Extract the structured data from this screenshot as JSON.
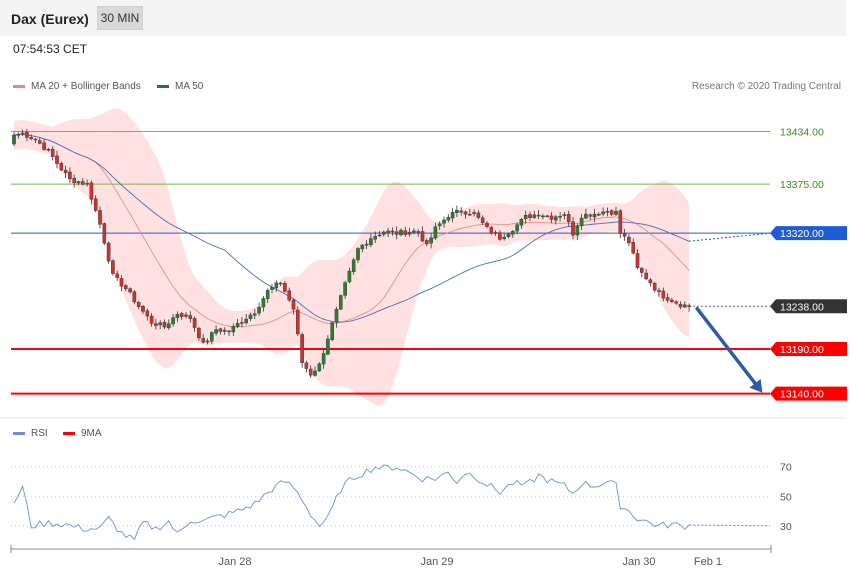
{
  "header": {
    "instrument": "Dax (Eurex)",
    "timeframe": "30 MIN"
  },
  "timestamp": "07:54:53 CET",
  "legend": {
    "ma20_label": "MA 20 + Bollinger Bands",
    "ma50_label": "MA 50",
    "rsi_label": "RSI",
    "rsi_ma_label": "9MA",
    "copyright": "Research © 2020 Trading Central"
  },
  "colors": {
    "up": "#2e7d32",
    "down": "#d32f2f",
    "ma20": "#f08080",
    "bb_fill": "#ffdcdc",
    "ma50": "#4a6fb5",
    "green_level": "#7cb342",
    "blue_level": "#1e5bd6",
    "red_level": "#ff0000",
    "last_price": "#333333",
    "arrow": "#2e5aa8",
    "rsi": "#6b8fe0",
    "rsi_ma": "#ff0000"
  },
  "chart_data": [
    {
      "type": "candlestick",
      "x_axis_labels": [
        "Jan 28",
        "Jan 29",
        "Jan 30",
        "Feb 1"
      ],
      "ylim": [
        13125,
        13475
      ],
      "levels": [
        {
          "value": 13434.0,
          "label": "13434.00",
          "role": "resistance"
        },
        {
          "value": 13375.0,
          "label": "13375.00",
          "role": "resistance"
        },
        {
          "value": 13320.0,
          "label": "13320.00",
          "role": "pivot"
        },
        {
          "value": 13238.0,
          "label": "13238.00",
          "role": "last price"
        },
        {
          "value": 13190.0,
          "label": "13190.00",
          "role": "support"
        },
        {
          "value": 13140.0,
          "label": "13140.00",
          "role": "support"
        }
      ],
      "close_anchors": [
        [
          0,
          13430
        ],
        [
          2,
          13432
        ],
        [
          5,
          13425
        ],
        [
          8,
          13412
        ],
        [
          11,
          13392
        ],
        [
          13,
          13380
        ],
        [
          15,
          13378
        ],
        [
          17,
          13375
        ],
        [
          20,
          13330
        ],
        [
          23,
          13272
        ],
        [
          26,
          13258
        ],
        [
          29,
          13238
        ],
        [
          32,
          13220
        ],
        [
          35,
          13215
        ],
        [
          38,
          13230
        ],
        [
          41,
          13225
        ],
        [
          44,
          13195
        ],
        [
          47,
          13212
        ],
        [
          50,
          13210
        ],
        [
          53,
          13222
        ],
        [
          56,
          13232
        ],
        [
          59,
          13255
        ],
        [
          62,
          13265
        ],
        [
          65,
          13235
        ],
        [
          67,
          13175
        ],
        [
          69,
          13162
        ],
        [
          71,
          13172
        ],
        [
          74,
          13218
        ],
        [
          77,
          13262
        ],
        [
          80,
          13302
        ],
        [
          83,
          13315
        ],
        [
          86,
          13322
        ],
        [
          89,
          13320
        ],
        [
          92,
          13322
        ],
        [
          94,
          13322
        ],
        [
          96,
          13305
        ],
        [
          98,
          13325
        ],
        [
          101,
          13340
        ],
        [
          104,
          13345
        ],
        [
          107,
          13342
        ],
        [
          110,
          13325
        ],
        [
          113,
          13315
        ],
        [
          116,
          13325
        ],
        [
          119,
          13338
        ],
        [
          122,
          13342
        ],
        [
          125,
          13338
        ],
        [
          128,
          13342
        ],
        [
          130,
          13320
        ],
        [
          132,
          13340
        ],
        [
          135,
          13342
        ],
        [
          138,
          13345
        ],
        [
          140,
          13343
        ],
        [
          141,
          13320
        ],
        [
          143,
          13310
        ],
        [
          145,
          13280
        ],
        [
          148,
          13265
        ],
        [
          150,
          13252
        ],
        [
          153,
          13245
        ],
        [
          155,
          13240
        ],
        [
          157,
          13238
        ]
      ],
      "rsi": {
        "levels": [
          70,
          50,
          30
        ],
        "ylim": [
          15,
          82
        ],
        "rsi_anchors": [
          [
            0,
            46
          ],
          [
            2,
            56
          ],
          [
            4,
            30
          ],
          [
            8,
            32
          ],
          [
            12,
            31
          ],
          [
            16,
            28
          ],
          [
            20,
            28
          ],
          [
            22,
            35
          ],
          [
            25,
            25
          ],
          [
            28,
            20
          ],
          [
            30,
            32
          ],
          [
            33,
            28
          ],
          [
            36,
            33
          ],
          [
            38,
            24
          ],
          [
            41,
            34
          ],
          [
            44,
            33
          ],
          [
            47,
            36
          ],
          [
            50,
            38
          ],
          [
            53,
            41
          ],
          [
            56,
            45
          ],
          [
            58,
            50
          ],
          [
            60,
            55
          ],
          [
            63,
            60
          ],
          [
            65,
            56
          ],
          [
            67,
            48
          ],
          [
            69,
            38
          ],
          [
            71,
            30
          ],
          [
            73,
            35
          ],
          [
            76,
            55
          ],
          [
            79,
            63
          ],
          [
            82,
            67
          ],
          [
            84,
            70
          ],
          [
            86,
            69
          ],
          [
            89,
            70
          ],
          [
            92,
            66
          ],
          [
            95,
            62
          ],
          [
            98,
            62
          ],
          [
            101,
            66
          ],
          [
            103,
            60
          ],
          [
            105,
            66
          ],
          [
            107,
            64
          ],
          [
            110,
            58
          ],
          [
            113,
            53
          ],
          [
            116,
            59
          ],
          [
            119,
            57
          ],
          [
            122,
            64
          ],
          [
            125,
            60
          ],
          [
            128,
            57
          ],
          [
            130,
            52
          ],
          [
            132,
            59
          ],
          [
            135,
            57
          ],
          [
            138,
            60
          ],
          [
            140,
            57
          ],
          [
            141,
            44
          ],
          [
            143,
            40
          ],
          [
            145,
            35
          ],
          [
            148,
            32
          ],
          [
            150,
            30
          ],
          [
            153,
            31
          ],
          [
            155,
            30
          ],
          [
            157,
            30
          ]
        ]
      }
    }
  ]
}
